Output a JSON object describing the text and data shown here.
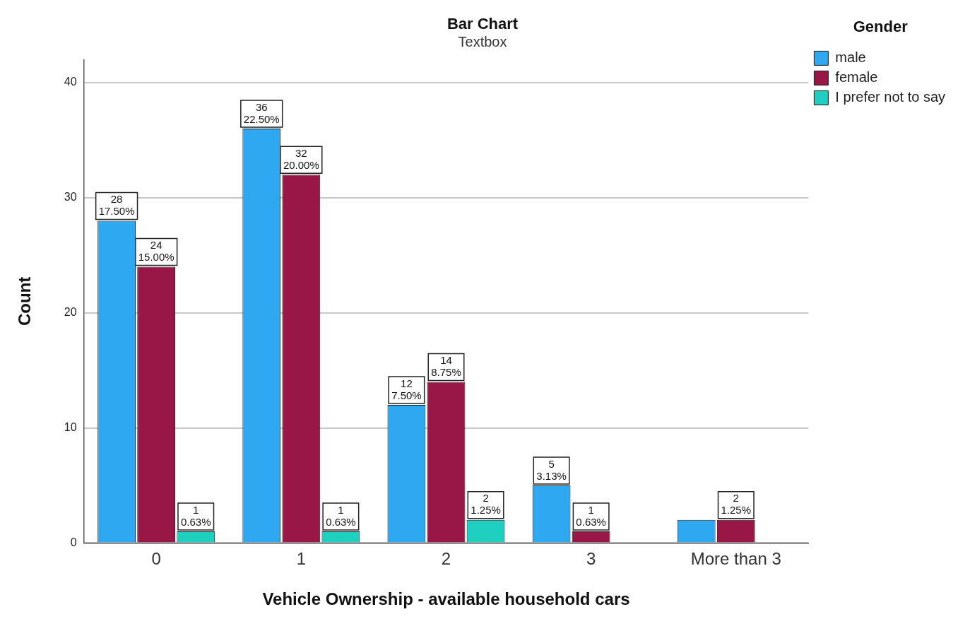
{
  "chart_data": {
    "type": "bar",
    "title": "Bar Chart",
    "subtitle": "Textbox",
    "xlabel": "Vehicle Ownership - available household cars",
    "ylabel": "Count",
    "legend_title": "Gender",
    "categories": [
      "0",
      "1",
      "2",
      "3",
      "More than 3"
    ],
    "series": [
      {
        "name": "male",
        "color": "#2ea8f0",
        "values": [
          28,
          36,
          12,
          5,
          2
        ],
        "value_labels": [
          "28\n17.50%",
          "36\n22.50%",
          "12\n7.50%",
          "5\n3.13%",
          null
        ]
      },
      {
        "name": "female",
        "color": "#981746",
        "values": [
          24,
          32,
          14,
          1,
          2
        ],
        "value_labels": [
          "24\n15.00%",
          "32\n20.00%",
          "14\n8.75%",
          "1\n0.63%",
          "2\n1.25%"
        ]
      },
      {
        "name": "I prefer not to say",
        "color": "#1fcfc0",
        "values": [
          1,
          1,
          2,
          null,
          null
        ],
        "value_labels": [
          "1\n0.63%",
          "1\n0.63%",
          "2\n1.25%",
          null,
          null
        ]
      }
    ],
    "ylim": [
      0,
      42
    ],
    "yticks": [
      0,
      10,
      20,
      30,
      40
    ],
    "grid": "y",
    "legend": "top right"
  }
}
